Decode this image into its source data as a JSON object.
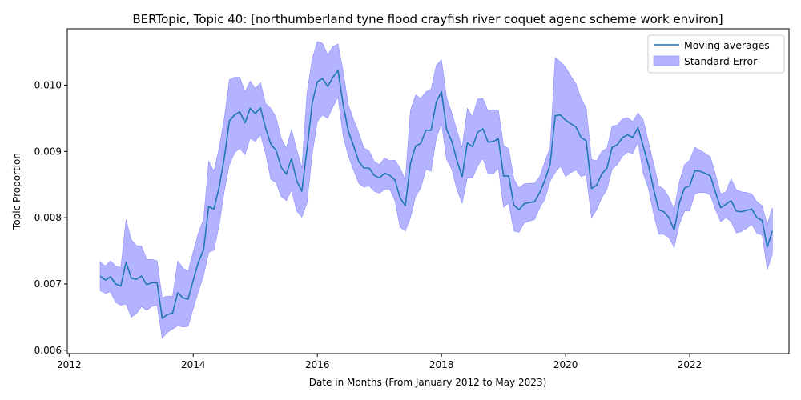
{
  "chart_data": {
    "type": "line",
    "title": "BERTopic, Topic 40: [northumberland tyne flood crayfish river coquet agenc scheme work environ]",
    "xlabel": "Date in Months (From January 2012 to May 2023)",
    "ylabel": "Topic Proportion",
    "xlim": [
      2011.97,
      2023.6
    ],
    "ylim": [
      0.00595,
      0.01085
    ],
    "xticks": [
      2012,
      2014,
      2016,
      2018,
      2020,
      2022
    ],
    "yticks": [
      0.006,
      0.007,
      0.008,
      0.009,
      0.01
    ],
    "ytick_labels": [
      "0.006",
      "0.007",
      "0.008",
      "0.009",
      "0.010"
    ],
    "grid": false,
    "legend_position": "top-right",
    "colors": {
      "line": "#1f77b4",
      "band": "#b3b3ff",
      "band_edge": "#8c8cff"
    },
    "series": [
      {
        "name": "Moving averages",
        "x": [
          2012.5,
          2012.583,
          2012.667,
          2012.75,
          2012.833,
          2012.917,
          2013.0,
          2013.083,
          2013.167,
          2013.25,
          2013.333,
          2013.417,
          2013.5,
          2013.583,
          2013.667,
          2013.75,
          2013.833,
          2013.917,
          2014.0,
          2014.083,
          2014.167,
          2014.25,
          2014.333,
          2014.417,
          2014.5,
          2014.583,
          2014.667,
          2014.75,
          2014.833,
          2014.917,
          2015.0,
          2015.083,
          2015.167,
          2015.25,
          2015.333,
          2015.417,
          2015.5,
          2015.583,
          2015.667,
          2015.75,
          2015.833,
          2015.917,
          2016.0,
          2016.083,
          2016.167,
          2016.25,
          2016.333,
          2016.417,
          2016.5,
          2016.583,
          2016.667,
          2016.75,
          2016.833,
          2016.917,
          2017.0,
          2017.083,
          2017.167,
          2017.25,
          2017.333,
          2017.417,
          2017.5,
          2017.583,
          2017.667,
          2017.75,
          2017.833,
          2017.917,
          2018.0,
          2018.083,
          2018.167,
          2018.25,
          2018.333,
          2018.417,
          2018.5,
          2018.583,
          2018.667,
          2018.75,
          2018.833,
          2018.917,
          2019.0,
          2019.083,
          2019.167,
          2019.25,
          2019.333,
          2019.417,
          2019.5,
          2019.583,
          2019.667,
          2019.75,
          2019.833,
          2019.917,
          2020.0,
          2020.083,
          2020.167,
          2020.25,
          2020.333,
          2020.417,
          2020.5,
          2020.583,
          2020.667,
          2020.75,
          2020.833,
          2020.917,
          2021.0,
          2021.083,
          2021.167,
          2021.25,
          2021.333,
          2021.417,
          2021.5,
          2021.583,
          2021.667,
          2021.75,
          2021.833,
          2021.917,
          2022.0,
          2022.083,
          2022.167,
          2022.25,
          2022.333,
          2022.417,
          2022.5,
          2022.583,
          2022.667,
          2022.75,
          2022.833,
          2022.917,
          2023.0,
          2023.083,
          2023.167,
          2023.25,
          2023.333
        ],
        "values": [
          0.00712,
          0.00706,
          0.00711,
          0.007,
          0.00697,
          0.00733,
          0.00709,
          0.00707,
          0.00712,
          0.00699,
          0.00702,
          0.00702,
          0.00648,
          0.00654,
          0.00656,
          0.00687,
          0.00679,
          0.00677,
          0.00706,
          0.00733,
          0.00752,
          0.00817,
          0.00813,
          0.00846,
          0.0089,
          0.00946,
          0.00955,
          0.0096,
          0.00943,
          0.00965,
          0.00957,
          0.00966,
          0.00935,
          0.00911,
          0.00902,
          0.00876,
          0.00866,
          0.00889,
          0.00856,
          0.0084,
          0.00903,
          0.00973,
          0.01005,
          0.0101,
          0.00998,
          0.01012,
          0.01022,
          0.0097,
          0.0093,
          0.00909,
          0.00885,
          0.00875,
          0.00875,
          0.00864,
          0.0086,
          0.00867,
          0.00864,
          0.00857,
          0.0083,
          0.00818,
          0.00882,
          0.00908,
          0.00912,
          0.00932,
          0.00932,
          0.00975,
          0.0099,
          0.00933,
          0.00915,
          0.00886,
          0.00862,
          0.00913,
          0.00907,
          0.00929,
          0.00934,
          0.00914,
          0.00915,
          0.00919,
          0.00863,
          0.00863,
          0.00819,
          0.00812,
          0.00821,
          0.00823,
          0.00824,
          0.00838,
          0.00857,
          0.0088,
          0.00954,
          0.00955,
          0.00947,
          0.00942,
          0.00937,
          0.00921,
          0.00916,
          0.00844,
          0.00849,
          0.00866,
          0.00875,
          0.00906,
          0.0091,
          0.00921,
          0.00925,
          0.00921,
          0.00936,
          0.00908,
          0.0088,
          0.00844,
          0.00812,
          0.00809,
          0.008,
          0.00781,
          0.00822,
          0.00845,
          0.00848,
          0.00871,
          0.0087,
          0.00867,
          0.00863,
          0.00838,
          0.00815,
          0.0082,
          0.00826,
          0.0081,
          0.00809,
          0.00811,
          0.00813,
          0.008,
          0.00796,
          0.00756,
          0.0078
        ]
      },
      {
        "name": "Standard Error",
        "upper": [
          0.00733,
          0.00727,
          0.00735,
          0.00727,
          0.00725,
          0.00797,
          0.00767,
          0.00758,
          0.00757,
          0.00737,
          0.00737,
          0.00735,
          0.00679,
          0.00682,
          0.00681,
          0.00735,
          0.00724,
          0.00719,
          0.00749,
          0.00777,
          0.00798,
          0.00885,
          0.0087,
          0.00905,
          0.0095,
          0.01008,
          0.01012,
          0.01012,
          0.0099,
          0.01006,
          0.00995,
          0.01004,
          0.00972,
          0.00965,
          0.00952,
          0.0092,
          0.00905,
          0.00933,
          0.00903,
          0.00875,
          0.00988,
          0.0104,
          0.01066,
          0.01063,
          0.01046,
          0.01058,
          0.01062,
          0.0102,
          0.0097,
          0.00948,
          0.00928,
          0.00905,
          0.00901,
          0.00885,
          0.0088,
          0.0089,
          0.00886,
          0.00887,
          0.00875,
          0.00857,
          0.00962,
          0.00985,
          0.0098,
          0.0099,
          0.00994,
          0.0103,
          0.01038,
          0.00981,
          0.00958,
          0.00931,
          0.00906,
          0.00965,
          0.00952,
          0.00979,
          0.0098,
          0.00961,
          0.00963,
          0.00962,
          0.00909,
          0.00904,
          0.00858,
          0.00845,
          0.00851,
          0.00852,
          0.00852,
          0.00862,
          0.00885,
          0.00905,
          0.01042,
          0.01035,
          0.01027,
          0.01014,
          0.01002,
          0.0098,
          0.00965,
          0.00888,
          0.00886,
          0.009,
          0.00905,
          0.00938,
          0.0094,
          0.00949,
          0.00951,
          0.00945,
          0.00958,
          0.00948,
          0.00915,
          0.00882,
          0.00848,
          0.00843,
          0.00831,
          0.00812,
          0.00854,
          0.0088,
          0.00887,
          0.00906,
          0.00902,
          0.00897,
          0.00892,
          0.00865,
          0.00836,
          0.00839,
          0.00859,
          0.00842,
          0.00839,
          0.00838,
          0.00836,
          0.00824,
          0.00818,
          0.0079,
          0.00815
        ],
        "lower": [
          0.0069,
          0.00686,
          0.00688,
          0.00672,
          0.00668,
          0.0067,
          0.0065,
          0.00655,
          0.00666,
          0.0066,
          0.00666,
          0.00668,
          0.00618,
          0.00627,
          0.00632,
          0.00637,
          0.00635,
          0.00636,
          0.00663,
          0.00689,
          0.00713,
          0.00748,
          0.00751,
          0.00788,
          0.0084,
          0.0088,
          0.00898,
          0.00905,
          0.00895,
          0.0092,
          0.00915,
          0.00926,
          0.00896,
          0.00858,
          0.00853,
          0.00832,
          0.00826,
          0.00842,
          0.0081,
          0.00801,
          0.00822,
          0.00896,
          0.00945,
          0.00955,
          0.0095,
          0.00967,
          0.00982,
          0.00922,
          0.00893,
          0.00872,
          0.00852,
          0.00846,
          0.00848,
          0.0084,
          0.00837,
          0.00843,
          0.00843,
          0.00826,
          0.00786,
          0.0078,
          0.008,
          0.00832,
          0.00845,
          0.00873,
          0.0087,
          0.0092,
          0.00942,
          0.00888,
          0.00873,
          0.00842,
          0.00822,
          0.0086,
          0.0086,
          0.00878,
          0.0089,
          0.00866,
          0.00866,
          0.00875,
          0.00816,
          0.00822,
          0.0078,
          0.00778,
          0.00792,
          0.00795,
          0.00797,
          0.00815,
          0.00828,
          0.00855,
          0.00868,
          0.00878,
          0.00862,
          0.00868,
          0.00872,
          0.00862,
          0.00865,
          0.008,
          0.00812,
          0.0083,
          0.00843,
          0.00873,
          0.0088,
          0.00893,
          0.00899,
          0.00897,
          0.00914,
          0.00867,
          0.00845,
          0.00807,
          0.00775,
          0.00775,
          0.0077,
          0.00755,
          0.0079,
          0.0081,
          0.0081,
          0.00836,
          0.00838,
          0.00838,
          0.00834,
          0.00812,
          0.00794,
          0.008,
          0.00794,
          0.00777,
          0.00779,
          0.00784,
          0.0079,
          0.00776,
          0.00774,
          0.00722,
          0.00745
        ]
      }
    ]
  }
}
